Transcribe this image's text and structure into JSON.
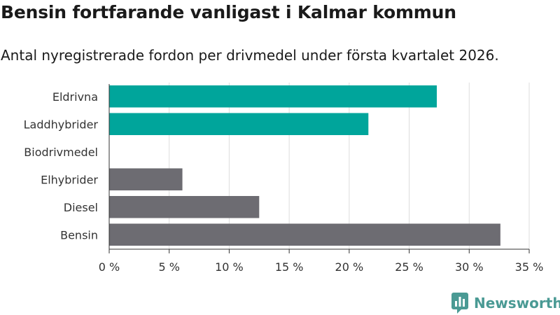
{
  "chart_data": {
    "type": "bar",
    "orientation": "horizontal",
    "title": "Bensin fortfarande vanligast i Kalmar kommun",
    "subtitle": "Antal nyregistrerade fordon per drivmedel under första kvartalet 2026.",
    "categories": [
      "Eldrivna",
      "Laddhybrider",
      "Biodrivmedel",
      "Elhybrider",
      "Diesel",
      "Bensin"
    ],
    "values": [
      27.3,
      21.6,
      0,
      6.1,
      12.5,
      32.6
    ],
    "bar_colors": [
      "#00a59b",
      "#00a59b",
      "#00a59b",
      "#6d6c72",
      "#6d6c72",
      "#6d6c72"
    ],
    "xlim": [
      0,
      35
    ],
    "xticks": [
      0,
      5,
      10,
      15,
      20,
      25,
      30,
      35
    ],
    "tick_labels": [
      "0 %",
      "5 %",
      "10 %",
      "15 %",
      "20 %",
      "25 %",
      "30 %",
      "35 %"
    ],
    "grid": true
  },
  "branding": {
    "logo_text": "Newsworthy",
    "logo_color": "#4a9a94"
  }
}
